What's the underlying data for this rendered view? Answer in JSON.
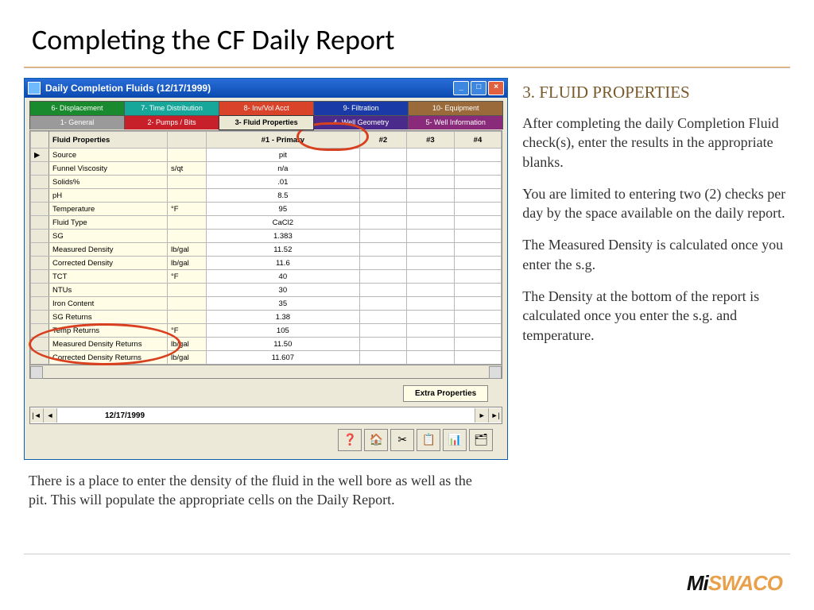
{
  "slide": {
    "title": "Completing the CF Daily Report"
  },
  "right": {
    "heading": "3. FLUID PROPERTIES",
    "p1": "After completing the daily Completion Fluid check(s), enter the results in the appropriate blanks.",
    "p2": "You are limited to entering two (2) checks per day by the space available on the daily report.",
    "p3": "The  Measured Density  is calculated once you enter the s.g.",
    "p4": "The Density at the bottom of the report is calculated once you enter the s.g. and temperature."
  },
  "bottom": {
    "text": "There  is a place to enter the density of the fluid in the well bore as well as the pit.  This will populate the appropriate cells on the Daily Report."
  },
  "window": {
    "title": "Daily Completion Fluids (12/17/1999)",
    "date": "12/17/1999",
    "extra_btn": "Extra Properties"
  },
  "tabs_top": [
    {
      "label": "6- Displacement",
      "color": "#1a8a2e"
    },
    {
      "label": "7- Time Distribution",
      "color": "#16a69a"
    },
    {
      "label": "8- Inv/Vol Acct",
      "color": "#d8432a"
    },
    {
      "label": "9- Filtration",
      "color": "#1a3aa8"
    },
    {
      "label": "10- Equipment",
      "color": "#9a6a3a"
    }
  ],
  "tabs_bottom": [
    {
      "label": "1- General",
      "color": "#9a9a9a"
    },
    {
      "label": "2- Pumps / Bits",
      "color": "#c8202a"
    },
    {
      "label": "3- Fluid Properties",
      "color": "#eae7d3",
      "active": true
    },
    {
      "label": "4- Well Geometry",
      "color": "#4a2a8a"
    },
    {
      "label": "5- Well Information",
      "color": "#8a2a7a"
    }
  ],
  "table": {
    "headers": [
      "Fluid Properties",
      "",
      "#1 - Primary",
      "#2",
      "#3",
      "#4"
    ],
    "rows": [
      {
        "name": "Source",
        "unit": "",
        "v1": "pit"
      },
      {
        "name": "Funnel Viscosity",
        "unit": "s/qt",
        "v1": "n/a"
      },
      {
        "name": "Solids%",
        "unit": "",
        "v1": ".01"
      },
      {
        "name": "pH",
        "unit": "",
        "v1": "8.5"
      },
      {
        "name": "Temperature",
        "unit": "°F",
        "v1": "95"
      },
      {
        "name": "Fluid Type",
        "unit": "",
        "v1": "CaCl2"
      },
      {
        "name": "SG",
        "unit": "",
        "v1": "1.383"
      },
      {
        "name": "Measured Density",
        "unit": "lb/gal",
        "v1": "11.52"
      },
      {
        "name": "Corrected Density",
        "unit": "lb/gal",
        "v1": "11.6"
      },
      {
        "name": "TCT",
        "unit": "°F",
        "v1": "40"
      },
      {
        "name": "NTUs",
        "unit": "",
        "v1": "30"
      },
      {
        "name": "Iron Content",
        "unit": "",
        "v1": "35"
      },
      {
        "name": "SG Returns",
        "unit": "",
        "v1": "1.38"
      },
      {
        "name": "Temp Returns",
        "unit": "°F",
        "v1": "105"
      },
      {
        "name": "Measured Density Returns",
        "unit": "lb/gal",
        "v1": "11.50"
      },
      {
        "name": "Corrected Density Returns",
        "unit": "lb/gal",
        "v1": "11.607"
      }
    ]
  },
  "icons": [
    "❓",
    "🏠",
    "✂",
    "📋",
    "📊",
    "🗂"
  ],
  "logo": {
    "mi": "Mi",
    "swaco": "SWACO"
  }
}
